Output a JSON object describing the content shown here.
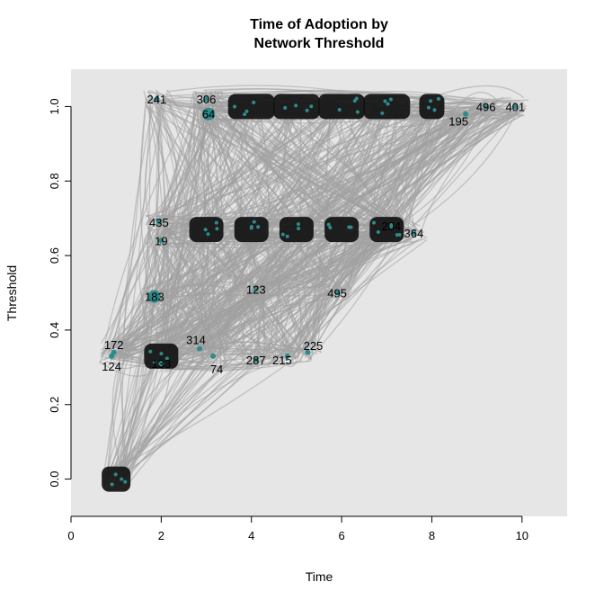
{
  "chart_data": {
    "type": "scatter",
    "title_lines": [
      "Time of Adoption by",
      "Network Threshold"
    ],
    "xlabel": "Time",
    "ylabel": "Threshold",
    "xlim": [
      0,
      11
    ],
    "ylim": [
      -0.1,
      1.1
    ],
    "xticks": [
      0,
      2,
      4,
      6,
      8,
      10
    ],
    "yticks": [
      "0.0",
      "0.2",
      "0.4",
      "0.6",
      "0.8",
      "1.0"
    ],
    "grid": false,
    "background_color": "#e6e6e6",
    "edge_color": "#a0a0a0",
    "node_color": "#2e8b8b",
    "labeled_nodes": [
      {
        "label": "241",
        "time": 1.9,
        "threshold": 1.02
      },
      {
        "label": "306",
        "time": 3.0,
        "threshold": 1.02
      },
      {
        "label": "64",
        "time": 3.05,
        "threshold": 0.98
      },
      {
        "label": "195",
        "time": 8.75,
        "threshold": 0.98
      },
      {
        "label": "496",
        "time": 9.2,
        "threshold": 1.0
      },
      {
        "label": "401",
        "time": 9.85,
        "threshold": 1.0
      },
      {
        "label": "435",
        "time": 1.95,
        "threshold": 0.69
      },
      {
        "label": "19",
        "time": 2.0,
        "threshold": 0.64
      },
      {
        "label": "204",
        "time": 7.1,
        "threshold": 0.68
      },
      {
        "label": "364",
        "time": 7.6,
        "threshold": 0.66
      },
      {
        "label": "123",
        "time": 4.1,
        "threshold": 0.51
      },
      {
        "label": "495",
        "time": 5.9,
        "threshold": 0.5
      },
      {
        "label": "183",
        "time": 1.85,
        "threshold": 0.49
      },
      {
        "label": "172",
        "time": 0.95,
        "threshold": 0.34
      },
      {
        "label": "124",
        "time": 0.9,
        "threshold": 0.33
      },
      {
        "label": "133",
        "time": 2.0,
        "threshold": 0.31
      },
      {
        "label": "314",
        "time": 2.85,
        "threshold": 0.35
      },
      {
        "label": "74",
        "time": 3.15,
        "threshold": 0.33
      },
      {
        "label": "287",
        "time": 4.1,
        "threshold": 0.32
      },
      {
        "label": "215",
        "time": 4.8,
        "threshold": 0.33
      },
      {
        "label": "225",
        "time": 5.25,
        "threshold": 0.34
      }
    ],
    "node_groups": [
      {
        "time": 1,
        "threshold": 0.0
      },
      {
        "time": 2,
        "threshold": 0.33
      },
      {
        "time": 3,
        "threshold": 0.67
      },
      {
        "time": 4,
        "threshold": 0.67
      },
      {
        "time": 5,
        "threshold": 0.67
      },
      {
        "time": 6,
        "threshold": 0.67
      },
      {
        "time": 7,
        "threshold": 0.67
      },
      {
        "time": 4,
        "threshold": 1.0
      },
      {
        "time": 5,
        "threshold": 1.0
      },
      {
        "time": 6,
        "threshold": 1.0
      },
      {
        "time": 7,
        "threshold": 1.0
      },
      {
        "time": 8,
        "threshold": 1.0
      }
    ]
  }
}
